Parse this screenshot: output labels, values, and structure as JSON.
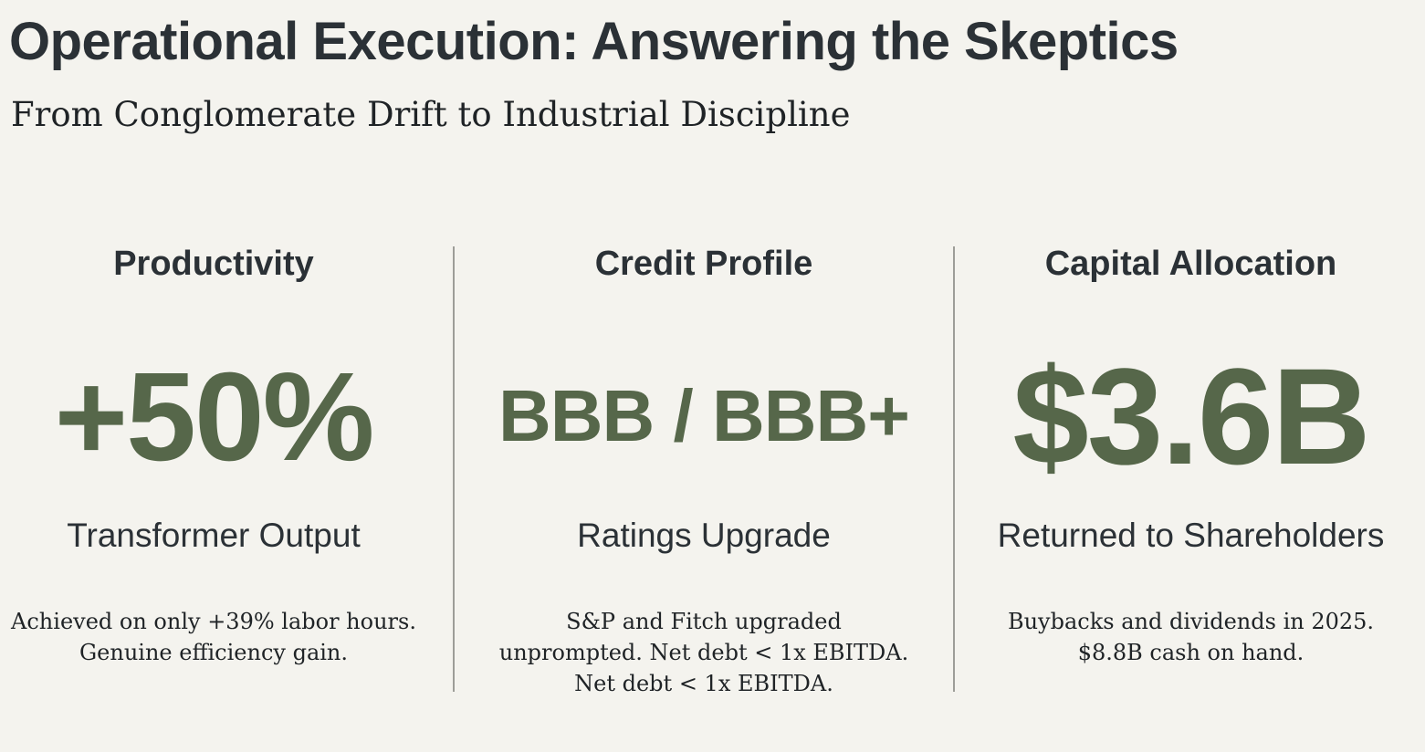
{
  "header": {
    "title": "Operational Execution: Answering the Skeptics",
    "subtitle": "From Conglomerate Drift to Industrial Discipline"
  },
  "columns": [
    {
      "heading": "Productivity",
      "metric": "+50%",
      "label": "Transformer Output",
      "description": [
        "Achieved on only +39% labor hours.",
        "Genuine efficiency gain."
      ]
    },
    {
      "heading": "Credit Profile",
      "metric": "BBB / BBB+",
      "label": "Ratings Upgrade",
      "description": [
        "S&P and Fitch upgraded",
        "unprompted. Net debt < 1x EBITDA.",
        "Net debt < 1x EBITDA."
      ]
    },
    {
      "heading": "Capital Allocation",
      "metric": "$3.6B",
      "label": "Returned to Shareholders",
      "description": [
        "Buybacks and dividends in 2025.",
        "$8.8B cash on hand."
      ]
    }
  ],
  "colors": {
    "background": "#f4f3ee",
    "text": "#2b3136",
    "metric_accent": "#56674a",
    "divider": "#9d9d98"
  }
}
